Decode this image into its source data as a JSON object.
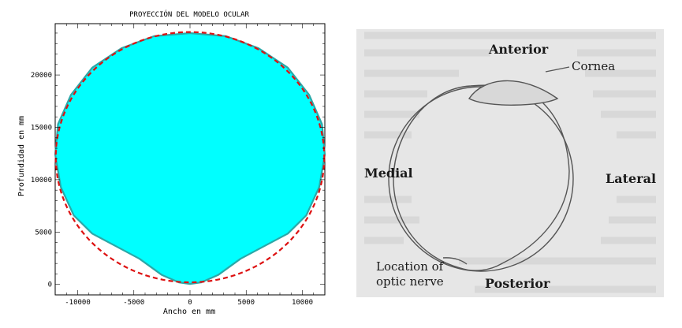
{
  "chart_data": {
    "type": "scatter",
    "title": "PROYECCIÓN DEL MODELO OCULAR",
    "xlabel": "Ancho en mm",
    "ylabel": "Profundidad en mm",
    "xlim": [
      -12000,
      12000
    ],
    "ylim": [
      -1000,
      24900
    ],
    "xticks": [
      -10000,
      -5000,
      0,
      5000,
      10000
    ],
    "yticks": [
      0,
      5000,
      10000,
      15000,
      20000
    ],
    "series": [
      {
        "style": "filled region",
        "color": "#00ffff",
        "edge_color": "#2aa8a8",
        "outline_points": [
          [
            0,
            24000
          ],
          [
            3200,
            23700
          ],
          [
            6100,
            22550
          ],
          [
            8700,
            20700
          ],
          [
            10600,
            18100
          ],
          [
            11750,
            15300
          ],
          [
            12000,
            12400
          ],
          [
            11500,
            9300
          ],
          [
            10350,
            6600
          ],
          [
            8700,
            4850
          ],
          [
            6600,
            3650
          ],
          [
            4500,
            2450
          ],
          [
            2500,
            900
          ],
          [
            1000,
            200
          ],
          [
            0,
            50
          ],
          [
            -1000,
            200
          ],
          [
            -2500,
            900
          ],
          [
            -4500,
            2450
          ],
          [
            -6600,
            3650
          ],
          [
            -8700,
            4850
          ],
          [
            -10350,
            6600
          ],
          [
            -11500,
            9300
          ],
          [
            -12000,
            12400
          ],
          [
            -11750,
            15300
          ],
          [
            -10600,
            18100
          ],
          [
            -8700,
            20700
          ],
          [
            -6100,
            22550
          ],
          [
            -3200,
            23700
          ],
          [
            0,
            24000
          ]
        ]
      },
      {
        "style": "dashed circle",
        "color": "#dd1111",
        "center": [
          0,
          12150
        ],
        "radius": 11950
      }
    ]
  },
  "figure": {
    "labels": {
      "anterior": "Anterior",
      "cornea": "Cornea",
      "medial": "Medial",
      "lateral": "Lateral",
      "optic_line1": "Location of",
      "optic_line2": "optic nerve",
      "posterior": "Posterior"
    }
  }
}
